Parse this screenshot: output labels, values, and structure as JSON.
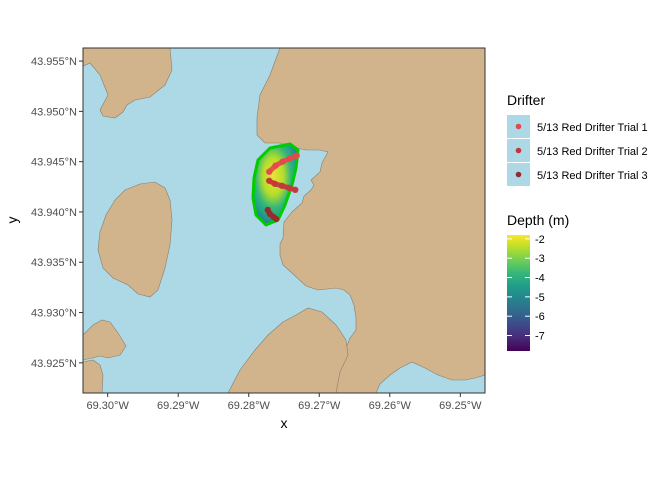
{
  "chart_data": {
    "type": "map",
    "xlabel": "x",
    "ylabel": "y",
    "xlim": [
      -69.3035,
      -69.2465
    ],
    "ylim": [
      43.922,
      43.9563
    ],
    "x_ticks": [
      {
        "value": -69.3,
        "label": "69.30°W"
      },
      {
        "value": -69.29,
        "label": "69.29°W"
      },
      {
        "value": -69.28,
        "label": "69.28°W"
      },
      {
        "value": -69.27,
        "label": "69.27°W"
      },
      {
        "value": -69.26,
        "label": "69.26°W"
      },
      {
        "value": -69.25,
        "label": "69.25°W"
      }
    ],
    "y_ticks": [
      {
        "value": 43.925,
        "label": "43.925°N"
      },
      {
        "value": 43.93,
        "label": "43.930°N"
      },
      {
        "value": 43.935,
        "label": "43.935°N"
      },
      {
        "value": 43.94,
        "label": "43.940°N"
      },
      {
        "value": 43.945,
        "label": "43.945°N"
      },
      {
        "value": 43.95,
        "label": "43.950°N"
      },
      {
        "value": 43.955,
        "label": "43.955°N"
      }
    ],
    "drifter_legend": {
      "title": "Drifter",
      "position": "right",
      "entries": [
        {
          "label": "5/13 Red Drifter Trial 1",
          "color": "#e8474a"
        },
        {
          "label": "5/13 Red Drifter Trial 2",
          "color": "#c4373a"
        },
        {
          "label": "5/13 Red Drifter Trial 3",
          "color": "#962a2c"
        }
      ]
    },
    "depth_legend": {
      "title": "Depth (m)",
      "position": "right",
      "min": -7.8,
      "max": -1.8,
      "breaks": [
        {
          "value": -2,
          "label": "-2"
        },
        {
          "value": -3,
          "label": "-3"
        },
        {
          "value": -4,
          "label": "-4"
        },
        {
          "value": -5,
          "label": "-5"
        },
        {
          "value": -6,
          "label": "-6"
        },
        {
          "value": -7,
          "label": "-7"
        }
      ],
      "colors": [
        "#440154",
        "#482878",
        "#3e4989",
        "#31688e",
        "#26828e",
        "#1f9e89",
        "#35b779",
        "#6ece58",
        "#b5de2b",
        "#fde725"
      ]
    },
    "colors": {
      "water": "#add8e6",
      "land": "#d2b48c",
      "coast": "#8a7d6b",
      "survey_outline": "#00cc00"
    },
    "series": [
      {
        "name": "5/13 Red Drifter Trial 1",
        "points": [
          [
            -69.2771,
            43.944
          ],
          [
            -69.2762,
            43.9446
          ],
          [
            -69.2752,
            43.945
          ],
          [
            -69.2742,
            43.9453
          ],
          [
            -69.2732,
            43.9456
          ]
        ]
      },
      {
        "name": "5/13 Red Drifter Trial 2",
        "points": [
          [
            -69.2771,
            43.9431
          ],
          [
            -69.2763,
            43.9428
          ],
          [
            -69.2753,
            43.9426
          ],
          [
            -69.2743,
            43.9424
          ],
          [
            -69.2734,
            43.9422
          ]
        ]
      },
      {
        "name": "5/13 Red Drifter Trial 3",
        "points": [
          [
            -69.2773,
            43.9402
          ],
          [
            -69.277,
            43.9398
          ],
          [
            -69.2765,
            43.9395
          ],
          [
            -69.2761,
            43.9393
          ]
        ]
      }
    ]
  }
}
